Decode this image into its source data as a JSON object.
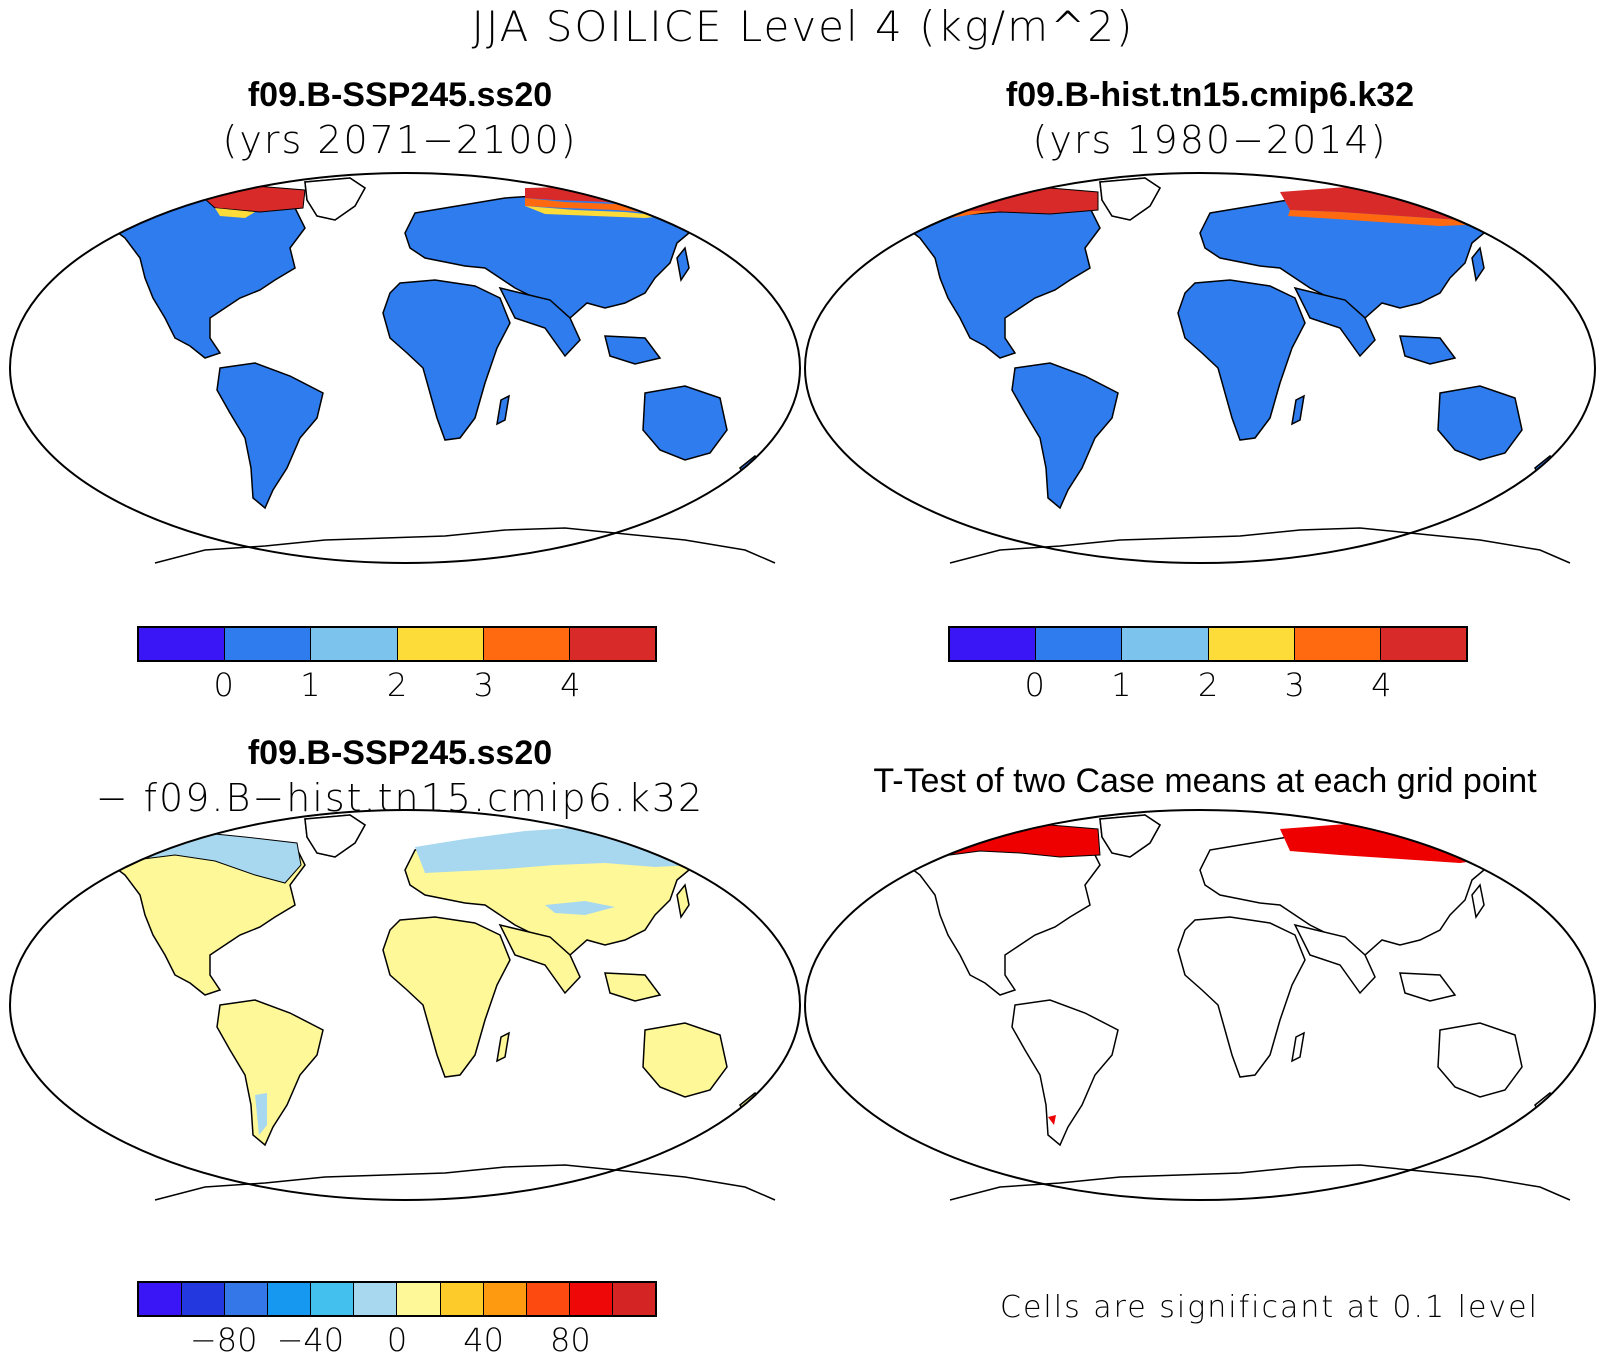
{
  "title": "JJA SOILICE Level 4 (kg/m^2)",
  "panels": {
    "case": {
      "title": "f09.B-SSP245.ss20",
      "subtitle": "(yrs 2071−2100)"
    },
    "control": {
      "title": "f09.B-hist.tn15.cmip6.k32",
      "subtitle": "(yrs 1980−2014)"
    },
    "diff": {
      "title": "f09.B-SSP245.ss20",
      "subtitle": "− f09.B−hist.tn15.cmip6.k32"
    },
    "ttest": {
      "title": "T-Test of two Case means at each grid point",
      "note": "Cells are significant at 0.1 level"
    }
  },
  "colorbars": {
    "abs": {
      "colors": [
        "#3a15f5",
        "#2e7ced",
        "#7cc4ee",
        "#fddc3a",
        "#ff6a10",
        "#d92a2a"
      ],
      "labels": [
        "0",
        "1",
        "2",
        "3",
        "4"
      ]
    },
    "diff": {
      "colors": [
        "#3a15f5",
        "#2438e0",
        "#3477e8",
        "#1698f0",
        "#44c0ef",
        "#a8d8ef",
        "#fef898",
        "#fdcb2a",
        "#fd9a10",
        "#fd4a10",
        "#ef0808",
        "#d42424"
      ],
      "labels": [
        "−80",
        "−40",
        "0",
        "40",
        "80"
      ]
    }
  },
  "fill_colors": {
    "case_land": "#2e7ced",
    "control_land": "#2e7ced",
    "diff_land": "#fef898",
    "diff_cool": "#a8d8ef",
    "permafrost_high": "#d92a2a",
    "permafrost_mid": "#ff6a10",
    "permafrost_low": "#fddc3a",
    "significant": "#ee0000"
  }
}
